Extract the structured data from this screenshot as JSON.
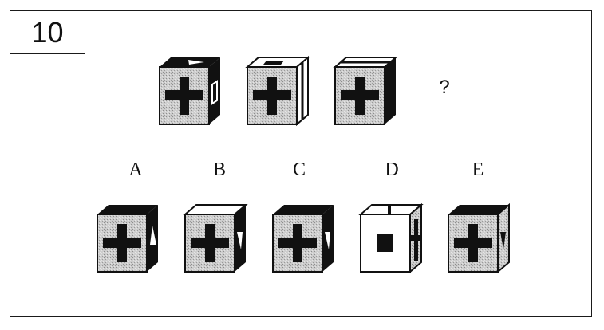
{
  "question": {
    "number": "10",
    "missing_marker": "?"
  },
  "options": {
    "labels": [
      "A",
      "B",
      "C",
      "D",
      "E"
    ]
  },
  "icons": {
    "sequence": [
      "cube-1-icon",
      "cube-2-icon",
      "cube-3-icon"
    ],
    "answers": [
      "cube-option-a-icon",
      "cube-option-b-icon",
      "cube-option-c-icon",
      "cube-option-d-icon",
      "cube-option-e-icon"
    ]
  },
  "colors": {
    "ink": "#111111",
    "face_gray": "#c9c9c9"
  }
}
